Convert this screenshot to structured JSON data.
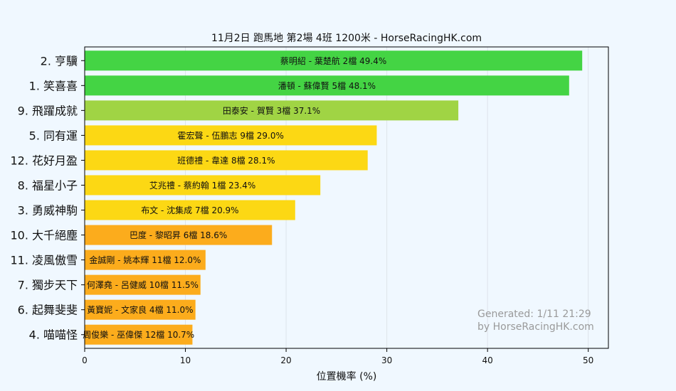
{
  "chart_data": {
    "type": "bar",
    "orientation": "horizontal",
    "title": "11月2日  跑馬地  第2場  4班  1200米 - HorseRacingHK.com",
    "xlabel": "位置機率 (%)",
    "ylabel": "",
    "xlim": [
      0,
      52
    ],
    "xticks": [
      0,
      10,
      20,
      30,
      40,
      50
    ],
    "grid": true,
    "legend": "none",
    "bars": [
      {
        "category": "2. 亨驥",
        "label": "蔡明紹 - 葉楚航 2檔  49.4%",
        "value": 49.4,
        "color": "#44d444"
      },
      {
        "category": "1. 笑喜喜",
        "label": "潘頓 - 蘇偉賢 5檔  48.1%",
        "value": 48.1,
        "color": "#44d444"
      },
      {
        "category": "9. 飛躍成就",
        "label": "田泰安 - 賀賢 3檔  37.1%",
        "value": 37.1,
        "color": "#a0d444"
      },
      {
        "category": "5. 同有運",
        "label": "霍宏聲 - 伍鵬志 9檔  29.0%",
        "value": 29.0,
        "color": "#fcd814"
      },
      {
        "category": "12. 花好月盈",
        "label": "班德禮 - 韋達 8檔  28.1%",
        "value": 28.1,
        "color": "#fcd814"
      },
      {
        "category": "8. 福星小子",
        "label": "艾兆禮 - 蔡約翰 1檔  23.4%",
        "value": 23.4,
        "color": "#fcd814"
      },
      {
        "category": "3. 勇威神駒",
        "label": "布文 - 沈集成 7檔  20.9%",
        "value": 20.9,
        "color": "#fcd814"
      },
      {
        "category": "10. 大千絕塵",
        "label": "巴度 - 黎昭昇 6檔  18.6%",
        "value": 18.6,
        "color": "#fcac1c"
      },
      {
        "category": "11. 凌風傲雪",
        "label": "金誠剛 - 姚本輝 11檔  12.0%",
        "value": 12.0,
        "color": "#fcac1c"
      },
      {
        "category": "7. 獨步天下",
        "label": "何澤堯 - 呂健威 10檔  11.5%",
        "value": 11.5,
        "color": "#fcac1c"
      },
      {
        "category": "6. 起舞斐斐",
        "label": "黃寶妮 - 文家良 4檔  11.0%",
        "value": 11.0,
        "color": "#fcac1c"
      },
      {
        "category": "4. 喵喵怪",
        "label": "周俊樂 - 巫偉傑 12檔  10.7%",
        "value": 10.7,
        "color": "#fcac1c"
      }
    ],
    "annotations": [
      "Generated: 1/11 21:29",
      "by HorseRacingHK.com"
    ]
  },
  "colors": {
    "background": "#f0f8ff",
    "green": "#44d444",
    "light_green": "#a0d444",
    "yellow": "#fcd814",
    "orange": "#fcac1c"
  }
}
